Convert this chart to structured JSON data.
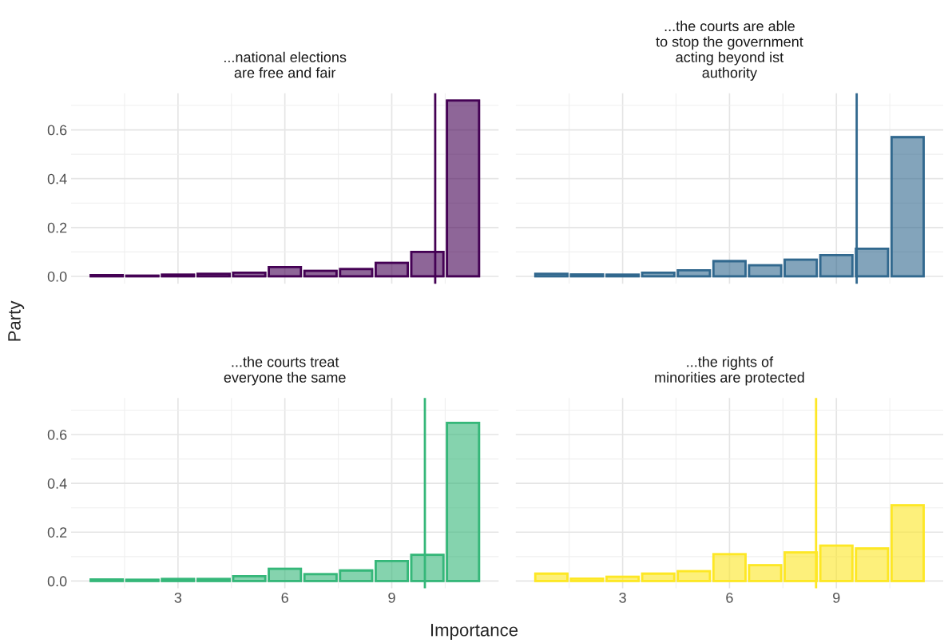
{
  "chart_data": [
    {
      "type": "bar",
      "title": "...national elections\nare free and fair",
      "xlabel": "Importance",
      "ylabel": "Party",
      "x": [
        1,
        2,
        3,
        4,
        5,
        6,
        7,
        8,
        9,
        10,
        11
      ],
      "series": [
        {
          "color": "#440154",
          "values": [
            0.005,
            0.003,
            0.007,
            0.01,
            0.015,
            0.038,
            0.022,
            0.03,
            0.055,
            0.1,
            0.72
          ]
        }
      ],
      "xlim": [
        0,
        12
      ],
      "ylim": [
        -0.03,
        0.75
      ],
      "xticks": [
        3,
        6,
        9
      ],
      "yticks": [
        {
          "value": 0,
          "label": "0.0"
        },
        0.2,
        0.4,
        0.6
      ],
      "grid": true,
      "tick_labels": "y",
      "ref_lines": [
        {
          "axis": "x",
          "value": 10.22,
          "color": "#440154"
        }
      ]
    },
    {
      "type": "bar",
      "title": "...the courts are able\nto stop the government\nacting beyond ist\nauthority",
      "x": [
        1,
        2,
        3,
        4,
        5,
        6,
        7,
        8,
        9,
        10,
        11
      ],
      "series": [
        {
          "color": "#31688e",
          "values": [
            0.01,
            0.008,
            0.007,
            0.015,
            0.025,
            0.062,
            0.045,
            0.068,
            0.087,
            0.113,
            0.57
          ]
        }
      ],
      "xlim": [
        0,
        12
      ],
      "ylim": [
        -0.03,
        0.75
      ],
      "xticks": [
        3,
        6,
        9
      ],
      "yticks": [
        0,
        0.2,
        0.4,
        0.6
      ],
      "grid": true,
      "tick_labels": false,
      "ref_lines": [
        {
          "axis": "x",
          "value": 9.57,
          "color": "#31688e"
        }
      ]
    },
    {
      "type": "bar",
      "title": "...the courts treat\neveryone the same",
      "x": [
        1,
        2,
        3,
        4,
        5,
        6,
        7,
        8,
        9,
        10,
        11
      ],
      "series": [
        {
          "color": "#35b779",
          "values": [
            0.007,
            0.005,
            0.008,
            0.008,
            0.02,
            0.05,
            0.028,
            0.043,
            0.082,
            0.107,
            0.648
          ]
        }
      ],
      "xlim": [
        0,
        12
      ],
      "ylim": [
        -0.03,
        0.75
      ],
      "xticks": [
        3,
        6,
        9
      ],
      "yticks": [
        {
          "value": 0,
          "label": "0.0"
        },
        0.2,
        0.4,
        0.6
      ],
      "grid": true,
      "ref_lines": [
        {
          "axis": "x",
          "value": 9.93,
          "color": "#35b779"
        }
      ]
    },
    {
      "type": "bar",
      "title": "...the rights of\nminorities are protected",
      "x": [
        1,
        2,
        3,
        4,
        5,
        6,
        7,
        8,
        9,
        10,
        11
      ],
      "series": [
        {
          "color": "#fde725",
          "values": [
            0.03,
            0.01,
            0.017,
            0.03,
            0.04,
            0.11,
            0.065,
            0.117,
            0.145,
            0.133,
            0.31
          ]
        }
      ],
      "xlim": [
        0,
        12
      ],
      "ylim": [
        -0.03,
        0.75
      ],
      "xticks": [
        3,
        6,
        9
      ],
      "yticks": [
        0,
        0.2,
        0.4,
        0.6
      ],
      "grid": true,
      "tick_labels": "x",
      "ref_lines": [
        {
          "axis": "x",
          "value": 8.43,
          "color": "#fde725"
        }
      ]
    }
  ]
}
